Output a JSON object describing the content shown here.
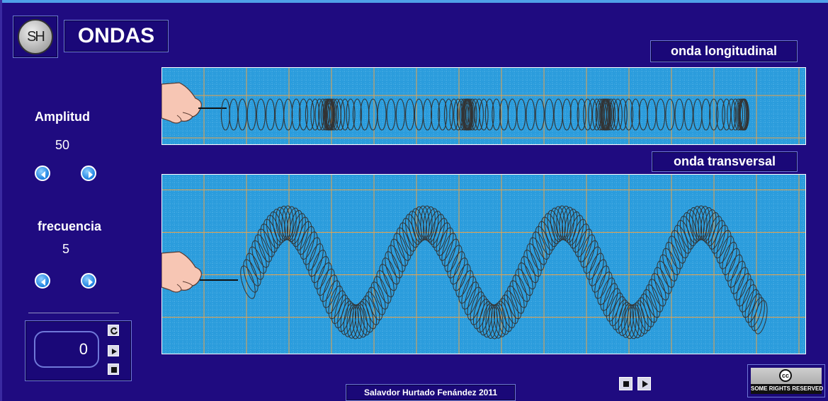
{
  "header": {
    "logo": "SH",
    "title": "ONDAS"
  },
  "panels": {
    "longitudinal": "onda longitudinal",
    "transversal": "onda transversal"
  },
  "controls": {
    "amplitude": {
      "label": "Amplitud",
      "value": 50
    },
    "frequency": {
      "label": "frecuencia",
      "value": 5
    },
    "counter": 0
  },
  "footer": {
    "credit": "Salavdor Hurtado Fenández 2011",
    "license_icon": "cc",
    "license": "SOME RIGHTS RESERVED"
  }
}
